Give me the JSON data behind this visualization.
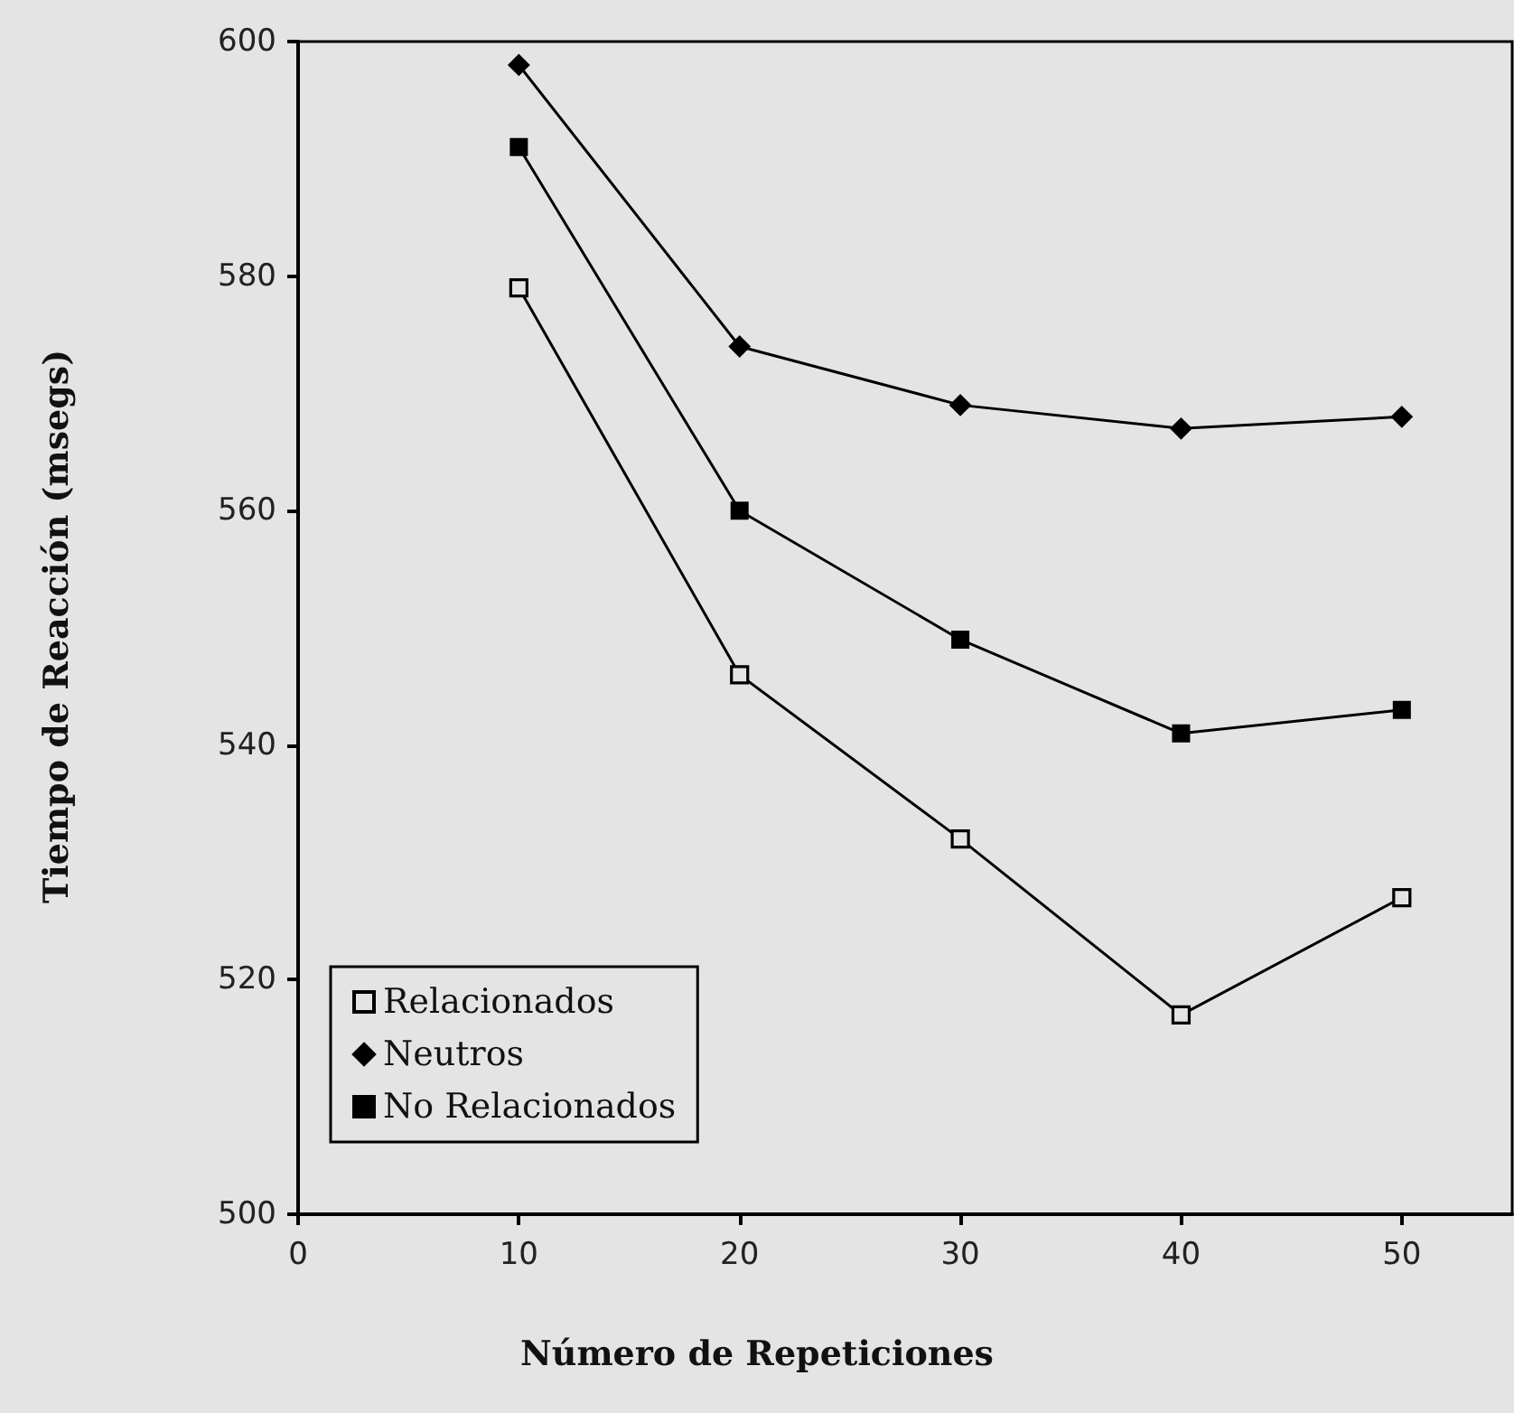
{
  "chart_data": {
    "type": "line",
    "xlabel": "Número de Repeticiones",
    "ylabel": "Tiempo de Reacción (msegs)",
    "x": [
      10,
      20,
      30,
      40,
      50
    ],
    "xlim": [
      0,
      55
    ],
    "xticks": [
      0,
      10,
      20,
      30,
      40,
      50
    ],
    "ylim": [
      500,
      600
    ],
    "yticks": [
      500,
      520,
      540,
      560,
      580,
      600
    ],
    "grid": false,
    "legend": "bottom left",
    "series": [
      {
        "name": "Relacionados",
        "color": "#000000",
        "marker": "square",
        "values": [
          579,
          546,
          532,
          517,
          527
        ]
      },
      {
        "name": "Neutros",
        "color": "#000000",
        "marker": "diamond",
        "values": [
          598,
          574,
          569,
          567,
          568
        ]
      },
      {
        "name": "No Relacionados",
        "color": "#000000",
        "marker": "square",
        "values": [
          591,
          560,
          549,
          541,
          543
        ]
      }
    ]
  }
}
